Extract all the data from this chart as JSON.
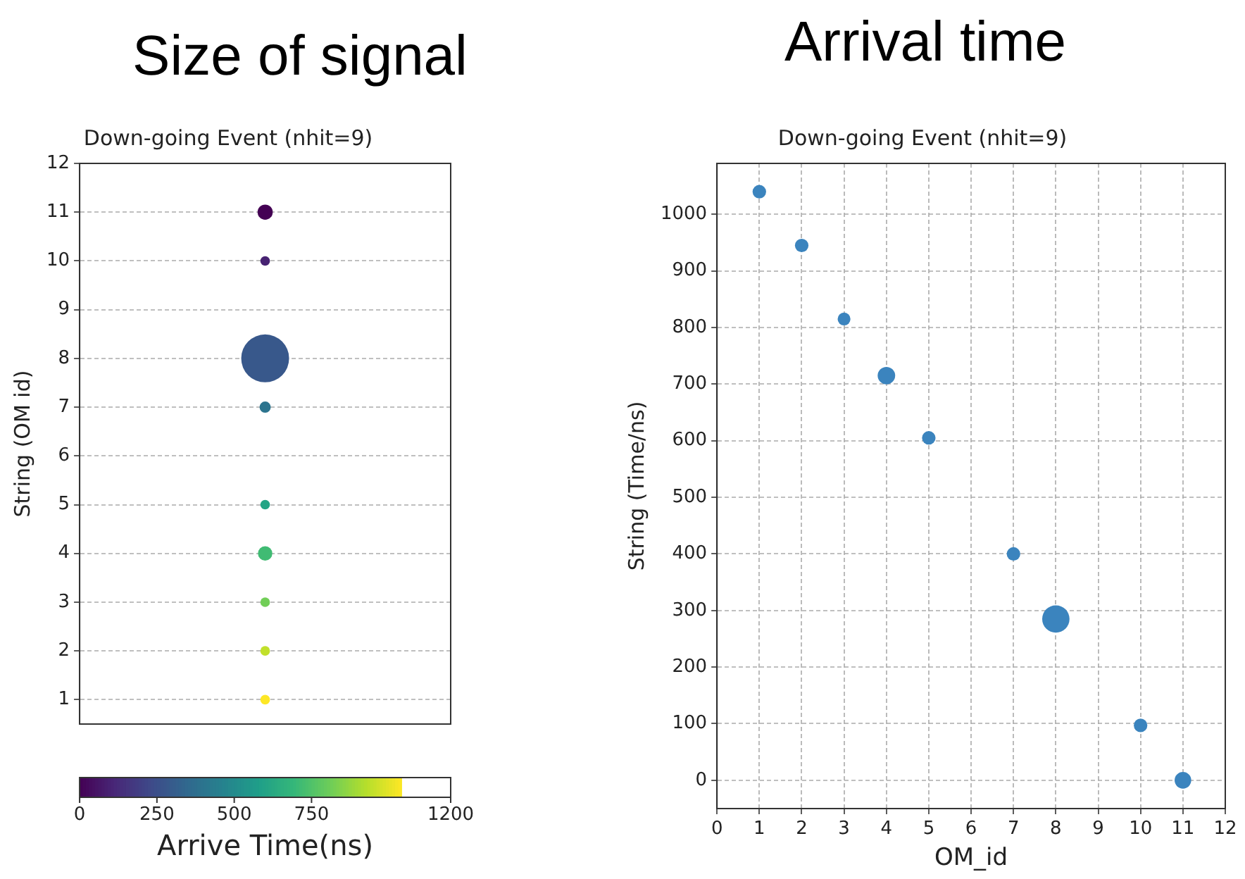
{
  "chart_data": [
    {
      "type": "bubble",
      "title": "Size of signal",
      "subtitle": "Down-going Event (nhit=9)",
      "ylabel": "String (OM id)",
      "clabel": "Arrive Time(ns)",
      "categories": [
        null
      ],
      "series": [
        {
          "values": [
            11
          ],
          "sizes": [
            0.1
          ],
          "cvalues": [
            0
          ]
        },
        {
          "values": [
            10
          ],
          "sizes": [
            0.04
          ],
          "cvalues": [
            97
          ]
        },
        {
          "values": [
            8
          ],
          "sizes": [
            1
          ],
          "cvalues": [
            285
          ]
        },
        {
          "values": [
            7
          ],
          "sizes": [
            0.055
          ],
          "cvalues": [
            400
          ]
        },
        {
          "values": [
            5
          ],
          "sizes": [
            0.04
          ],
          "cvalues": [
            605
          ]
        },
        {
          "values": [
            4
          ],
          "sizes": [
            0.09
          ],
          "cvalues": [
            715
          ]
        },
        {
          "values": [
            3
          ],
          "sizes": [
            0.04
          ],
          "cvalues": [
            815
          ]
        },
        {
          "values": [
            2
          ],
          "sizes": [
            0.04
          ],
          "cvalues": [
            945
          ]
        },
        {
          "values": [
            1
          ],
          "sizes": [
            0.04
          ],
          "cvalues": [
            1040
          ]
        }
      ],
      "ylim": [
        0.5,
        12
      ],
      "yticks": [
        1,
        2,
        3,
        4,
        5,
        6,
        7,
        8,
        9,
        10,
        11,
        12
      ],
      "clim": [
        0,
        1200
      ],
      "cticks": [
        0,
        250,
        500,
        750,
        1200
      ],
      "grid": "y",
      "tick_labels": "y"
    },
    {
      "type": "bubble",
      "title": "Arrival time",
      "subtitle": "Down-going Event (nhit=9)",
      "xlabel": "OM_id",
      "ylabel": "String (Time/ns)",
      "series": [
        {
          "color": "#3b84be",
          "x": [
            1,
            2,
            3,
            4,
            5,
            7,
            8,
            10,
            11
          ],
          "values": [
            1040,
            945,
            815,
            715,
            605,
            400,
            285,
            97,
            0
          ],
          "sizes": [
            0.245,
            0.245,
            0.22,
            0.41,
            0.245,
            0.245,
            1,
            0.245,
            0.37
          ]
        }
      ],
      "xlim": [
        0,
        12
      ],
      "xticks": [
        0,
        1,
        2,
        3,
        4,
        5,
        6,
        7,
        8,
        9,
        10,
        11,
        12
      ],
      "ylim": [
        -50,
        1090
      ],
      "yticks": [
        0,
        100,
        200,
        300,
        400,
        500,
        600,
        700,
        800,
        900,
        1000
      ],
      "grid": true
    }
  ]
}
